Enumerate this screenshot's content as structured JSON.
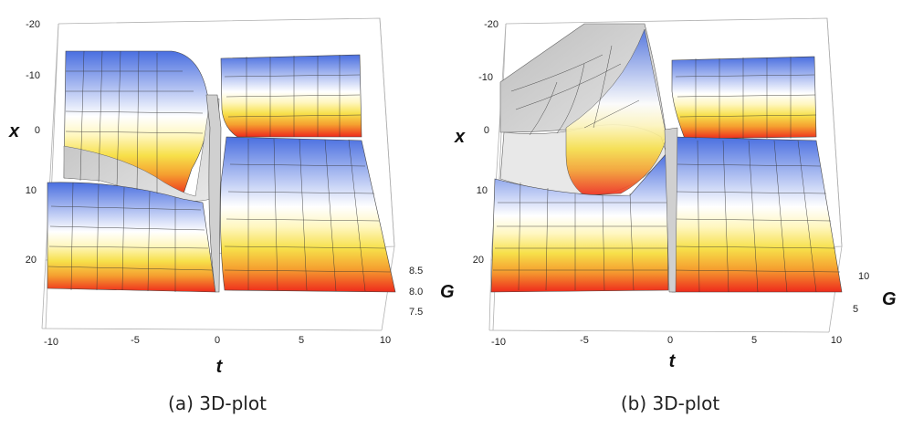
{
  "chart_data": [
    {
      "type": "surface",
      "caption": "(a) 3D-plot",
      "xlabel": "t",
      "ylabel": "x",
      "zlabel": "G",
      "t_ticks": [
        "-10",
        "-5",
        "0",
        "5",
        "10"
      ],
      "x_ticks": [
        "-20",
        "-10",
        "0",
        "10",
        "20"
      ],
      "g_ticks": [
        "8.5",
        "8.0",
        "7.5"
      ],
      "t_range": [
        -10,
        10
      ],
      "x_range": [
        -20,
        20
      ],
      "colors": {
        "top": "#4a6fe0",
        "middle": "#ffffff",
        "lower": "#f7e04a",
        "bottom": "#ee2a1c"
      }
    },
    {
      "type": "surface",
      "caption": "(b) 3D-plot",
      "xlabel": "t",
      "ylabel": "x",
      "zlabel": "G",
      "t_ticks": [
        "-10",
        "-5",
        "0",
        "5",
        "10"
      ],
      "x_ticks": [
        "-20",
        "-10",
        "0",
        "10",
        "20"
      ],
      "g_ticks": [
        "10",
        "5"
      ],
      "t_range": [
        -10,
        10
      ],
      "x_range": [
        -20,
        20
      ],
      "colors": {
        "top": "#4a6fe0",
        "middle": "#ffffff",
        "lower": "#f7e04a",
        "bottom": "#ee2a1c"
      }
    }
  ]
}
